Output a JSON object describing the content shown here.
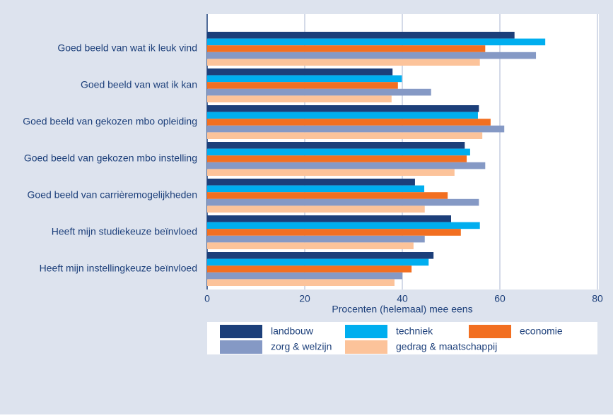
{
  "chart_data": {
    "type": "barh",
    "xlabel": "Procenten (helemaal) mee eens",
    "categories": [
      "Goed beeld van wat ik leuk vind",
      "Goed beeld van wat ik kan",
      "Goed beeld van gekozen mbo opleiding",
      "Goed beeld van gekozen mbo instelling",
      "Goed beeld van carrièremogelijkheden",
      "Heeft mijn studiekeuze beïnvloed",
      "Heeft mijn instellingkeuze beïnvloed"
    ],
    "series": [
      {
        "name": "landbouw",
        "color": "#1c3f7a",
        "values": [
          63.0,
          38.0,
          55.7,
          52.8,
          42.6,
          50.0,
          46.4
        ]
      },
      {
        "name": "techniek",
        "color": "#00aeef",
        "values": [
          69.3,
          39.9,
          55.5,
          53.9,
          44.5,
          55.9,
          45.4
        ]
      },
      {
        "name": "economie",
        "color": "#f26f21",
        "values": [
          57.0,
          39.1,
          58.1,
          53.2,
          49.3,
          52.0,
          41.9
        ]
      },
      {
        "name": "zorg & welzijn",
        "color": "#8599c5",
        "values": [
          67.4,
          45.9,
          60.9,
          57.0,
          55.7,
          44.6,
          40.0
        ]
      },
      {
        "name": "gedrag & maatschappij",
        "color": "#fcc39a",
        "values": [
          55.9,
          37.8,
          56.4,
          50.7,
          44.6,
          42.3,
          38.4
        ]
      }
    ],
    "xlim": [
      0,
      80
    ],
    "xticks": [
      0,
      20,
      40,
      60,
      80
    ],
    "grid": true,
    "legend": "bottom"
  }
}
